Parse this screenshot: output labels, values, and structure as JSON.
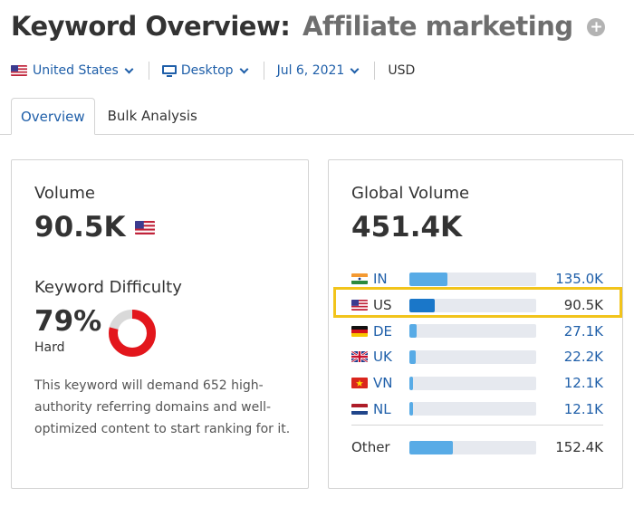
{
  "header": {
    "title": "Keyword Overview:",
    "keyword": "Affiliate marketing",
    "add_icon": "plus-circle-icon"
  },
  "filters": {
    "country": "United States",
    "device": "Desktop",
    "date": "Jul 6, 2021",
    "currency": "USD"
  },
  "tabs": [
    {
      "label": "Overview",
      "active": true
    },
    {
      "label": "Bulk Analysis",
      "active": false
    }
  ],
  "volume_card": {
    "volume_label": "Volume",
    "volume_value": "90.5K",
    "kd_label": "Keyword Difficulty",
    "kd_value": "79%",
    "kd_percent": 79,
    "kd_level": "Hard",
    "description": "This keyword will demand 652 high-authority referring domains and well-optimized content to start ranking for it."
  },
  "global_card": {
    "label": "Global Volume",
    "value": "451.4K",
    "countries": [
      {
        "code": "IN",
        "value": "135.0K",
        "share": 0.3
      },
      {
        "code": "US",
        "value": "90.5K",
        "share": 0.2
      },
      {
        "code": "DE",
        "value": "27.1K",
        "share": 0.06
      },
      {
        "code": "UK",
        "value": "22.2K",
        "share": 0.05
      },
      {
        "code": "VN",
        "value": "12.1K",
        "share": 0.03
      },
      {
        "code": "NL",
        "value": "12.1K",
        "share": 0.03
      }
    ],
    "other": {
      "label": "Other",
      "value": "152.4K",
      "share": 0.34
    }
  },
  "colors": {
    "link": "#1f5fa9",
    "bar_light": "#58abe6",
    "bar_dark": "#1a77c9",
    "kd_red": "#e3161c",
    "highlight": "#f2c41b"
  }
}
